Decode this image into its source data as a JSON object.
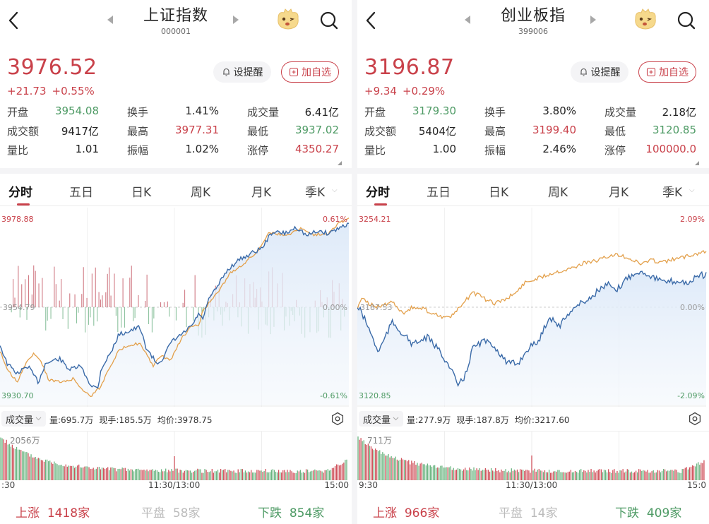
{
  "panels": [
    {
      "title": "上证指数",
      "code": "000001",
      "price": "3976.52",
      "change": "+21.73",
      "change_pct": "+0.55%",
      "alert_label": "设提醒",
      "add_label": "加自选",
      "stats": [
        [
          {
            "label": "开盘",
            "value": "3954.08",
            "color": "green"
          },
          {
            "label": "换手",
            "value": "1.41%",
            "color": ""
          },
          {
            "label": "成交量",
            "value": "6.41亿",
            "color": ""
          }
        ],
        [
          {
            "label": "成交额",
            "value": "9417亿",
            "color": ""
          },
          {
            "label": "最高",
            "value": "3977.31",
            "color": "red"
          },
          {
            "label": "最低",
            "value": "3937.02",
            "color": "green"
          }
        ],
        [
          {
            "label": "量比",
            "value": "1.01",
            "color": ""
          },
          {
            "label": "振幅",
            "value": "1.02%",
            "color": ""
          },
          {
            "label": "涨停",
            "value": "4350.27",
            "color": "red"
          }
        ]
      ],
      "tabs": [
        "分时",
        "五日",
        "日K",
        "周K",
        "月K",
        "季K"
      ],
      "chart": {
        "y_top": "3978.88",
        "y_mid": "3954.79",
        "y_bottom": "3930.70",
        "pct_top": "0.61%",
        "pct_mid": "0.00%",
        "pct_bottom": "-0.61%"
      },
      "volume": {
        "selector": "成交量",
        "vol": "量:695.7万",
        "current": "现手:185.5万",
        "avg_price": "均价:3978.75",
        "max_label": "2056万"
      },
      "time_axis": [
        ":30",
        "11:30/13:00",
        "15:00"
      ],
      "breadth": {
        "up_label": "上涨",
        "up_count": "1418家",
        "flat_label": "平盘",
        "flat_count": "58家",
        "down_label": "下跌",
        "down_count": "854家"
      }
    },
    {
      "title": "创业板指",
      "code": "399006",
      "price": "3196.87",
      "change": "+9.34",
      "change_pct": "+0.29%",
      "alert_label": "设提醒",
      "add_label": "加自选",
      "stats": [
        [
          {
            "label": "开盘",
            "value": "3179.30",
            "color": "green"
          },
          {
            "label": "换手",
            "value": "3.80%",
            "color": ""
          },
          {
            "label": "成交量",
            "value": "2.18亿",
            "color": ""
          }
        ],
        [
          {
            "label": "成交额",
            "value": "5404亿",
            "color": ""
          },
          {
            "label": "最高",
            "value": "3199.40",
            "color": "red"
          },
          {
            "label": "最低",
            "value": "3120.85",
            "color": "green"
          }
        ],
        [
          {
            "label": "量比",
            "value": "1.00",
            "color": ""
          },
          {
            "label": "振幅",
            "value": "2.46%",
            "color": ""
          },
          {
            "label": "涨停",
            "value": "100000.0",
            "color": "red"
          }
        ]
      ],
      "tabs": [
        "分时",
        "五日",
        "日K",
        "周K",
        "月K",
        "季K"
      ],
      "chart": {
        "y_top": "3254.21",
        "y_mid": "3187.53",
        "y_bottom": "3120.85",
        "pct_top": "2.09%",
        "pct_mid": "0.00%",
        "pct_bottom": "-2.09%"
      },
      "volume": {
        "selector": "成交量",
        "vol": "量:277.9万",
        "current": "现手:187.8万",
        "avg_price": "均价:3217.60",
        "max_label": "711万"
      },
      "time_axis": [
        "9:30",
        "11:30/13:00",
        "15:0"
      ],
      "breadth": {
        "up_label": "上涨",
        "up_count": "966家",
        "flat_label": "平盘",
        "flat_count": "14家",
        "down_label": "下跌",
        "down_count": "409家"
      }
    }
  ],
  "colors": {
    "up": "#c9414a",
    "down": "#4d9a64",
    "price_line": "#3a6aa8",
    "avg_line": "#e3a04b",
    "area": "#eaf2fb"
  },
  "icons": {
    "back": "chevron-left-icon",
    "prev": "triangle-left-icon",
    "next": "triangle-right-icon",
    "mascot": "mascot-icon",
    "search": "search-icon",
    "bell": "bell-icon",
    "plus_box": "plus-square-icon",
    "gear": "hexagon-settings-icon"
  }
}
